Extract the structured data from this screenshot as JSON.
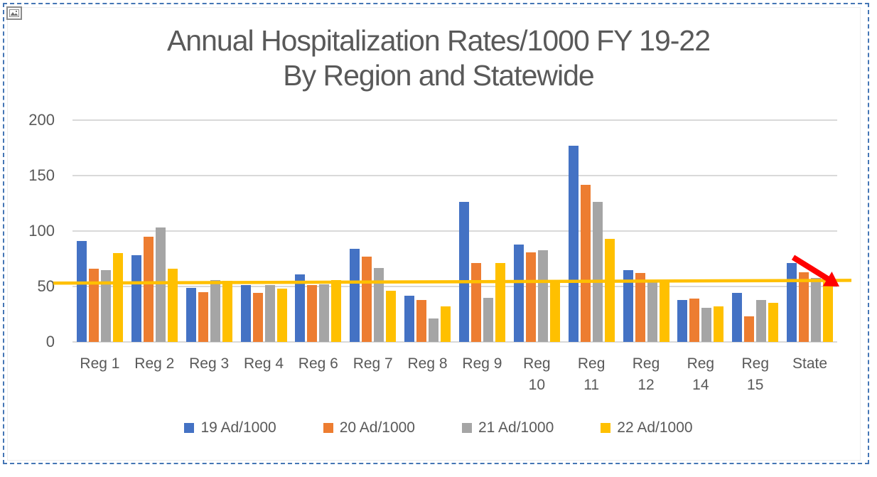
{
  "window": {
    "selection_border_color": "#4576b5",
    "top_left_icon": "image-placeholder-icon"
  },
  "chart_data": {
    "type": "bar",
    "title_line1": "Annual Hospitalization Rates/1000 FY 19-22",
    "title_line2": "By Region and Statewide",
    "categories": [
      "Reg 1",
      "Reg 2",
      "Reg 3",
      "Reg 4",
      "Reg 6",
      "Reg 7",
      "Reg 8",
      "Reg 9",
      "Reg 10",
      "Reg 11",
      "Reg 12",
      "Reg 14",
      "Reg 15",
      "State"
    ],
    "series": [
      {
        "name": "19 Ad/1000",
        "color": "#4472C4",
        "values": [
          91,
          78,
          49,
          51,
          61,
          84,
          42,
          126,
          88,
          177,
          65,
          38,
          44,
          71
        ]
      },
      {
        "name": "20 Ad/1000",
        "color": "#ED7D31",
        "values": [
          66,
          95,
          45,
          44,
          51,
          77,
          38,
          71,
          81,
          142,
          62,
          39,
          23,
          63
        ]
      },
      {
        "name": "21 Ad/1000",
        "color": "#A5A5A5",
        "values": [
          65,
          103,
          56,
          51,
          52,
          67,
          21,
          40,
          83,
          126,
          54,
          31,
          38,
          58
        ]
      },
      {
        "name": "22 Ad/1000",
        "color": "#FFC000",
        "values": [
          80,
          66,
          55,
          48,
          56,
          46,
          32,
          71,
          56,
          93,
          55,
          32,
          35,
          54
        ]
      }
    ],
    "ylim": [
      0,
      200
    ],
    "yticks": [
      0,
      50,
      100,
      150,
      200
    ],
    "grid": true,
    "legend_position": "bottom",
    "text_color": "#595959",
    "gridline_color": "#d9d9d9",
    "reference_line": {
      "color": "#FFC000",
      "value_start": 53,
      "value_end": 55.5,
      "description": "horizontal target line across all regions"
    },
    "annotation_arrow": {
      "color": "#FF0000",
      "direction": "down-right",
      "over_category": "State"
    }
  }
}
